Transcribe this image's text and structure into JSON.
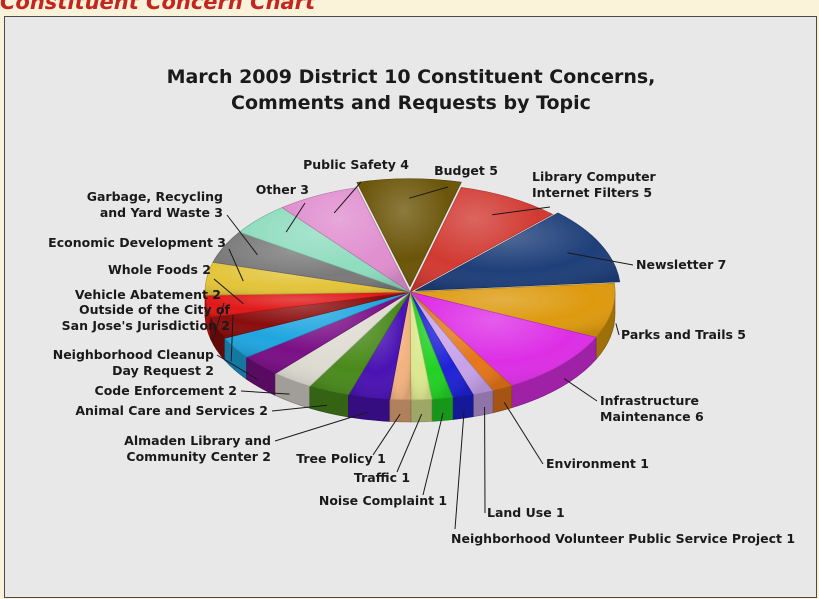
{
  "header": {
    "title": "Constituent Concern Chart"
  },
  "chart_data": {
    "type": "pie",
    "title_line1": "March 2009 District 10 Constituent Concerns,",
    "title_line2": "Comments and Requests by Topic",
    "slices": [
      {
        "name": "Budget",
        "value": 5,
        "color": "#6b5509",
        "lines": [
          "Budget 5"
        ]
      },
      {
        "name": "Library Computer Internet Filters",
        "value": 5,
        "color": "#d13a32",
        "lines": [
          "Library Computer",
          "Internet Filters 5"
        ]
      },
      {
        "name": "Newsletter",
        "value": 7,
        "color": "#1e3f7a",
        "lines": [
          "Newsletter 7"
        ]
      },
      {
        "name": "Parks and Trails",
        "value": 5,
        "color": "#dd9a0e",
        "lines": [
          "Parks and Trails 5"
        ]
      },
      {
        "name": "Infrastructure Maintenance",
        "value": 6,
        "color": "#dd2ee6",
        "lines": [
          "Infrastructure",
          "Maintenance 6"
        ]
      },
      {
        "name": "Environment",
        "value": 1,
        "color": "#e5751a",
        "lines": [
          "Environment 1"
        ]
      },
      {
        "name": "Land Use",
        "value": 1,
        "color": "#c6a1e8",
        "lines": [
          "Land Use 1"
        ]
      },
      {
        "name": "Neighborhood Volunteer Public Service Project",
        "value": 1,
        "color": "#1f22d6",
        "lines": [
          "Neighborhood Volunteer Public Service Project 1"
        ]
      },
      {
        "name": "Noise Complaint",
        "value": 1,
        "color": "#22d024",
        "lines": [
          "Noise Complaint 1"
        ]
      },
      {
        "name": "Traffic",
        "value": 1,
        "color": "#dbe88e",
        "lines": [
          "Traffic 1"
        ]
      },
      {
        "name": "Tree Policy",
        "value": 1,
        "color": "#f1b27e",
        "lines": [
          "Tree Policy 1"
        ]
      },
      {
        "name": "Almaden Library and Community Center",
        "value": 2,
        "color": "#4a12b3",
        "lines": [
          "Almaden Library and",
          "Community Center 2"
        ]
      },
      {
        "name": "Animal Care and Services",
        "value": 2,
        "color": "#4a8a1c",
        "lines": [
          "Animal Care and Services 2"
        ]
      },
      {
        "name": "Code Enforcement",
        "value": 2,
        "color": "#dedbd1",
        "lines": [
          "Code Enforcement 2"
        ]
      },
      {
        "name": "Neighborhood Cleanup Day Request",
        "value": 2,
        "color": "#7a0f86",
        "lines": [
          "Neighborhood Cleanup",
          "Day Request 2"
        ]
      },
      {
        "name": "Outside of the City of San Jose's Jurisdiction",
        "value": 2,
        "color": "#1fa6e0",
        "lines": [
          "Outside of the City of",
          "San Jose's Jurisdiction 2"
        ]
      },
      {
        "name": "Vehicle Abatement",
        "value": 2,
        "color": "#8a0d0d",
        "lines": [
          "Vehicle Abatement 2"
        ]
      },
      {
        "name": "Whole Foods",
        "value": 2,
        "color": "#e01818",
        "lines": [
          "Whole Foods 2"
        ]
      },
      {
        "name": "Economic Development",
        "value": 3,
        "color": "#e3c43a",
        "lines": [
          "Economic Development 3"
        ]
      },
      {
        "name": "Garbage, Recycling and Yard Waste",
        "value": 3,
        "color": "#7a7a7a",
        "lines": [
          "Garbage, Recycling",
          "and Yard Waste 3"
        ]
      },
      {
        "name": "Other",
        "value": 3,
        "color": "#8fdcbf",
        "lines": [
          "Other 3"
        ]
      },
      {
        "name": "Public Safety",
        "value": 4,
        "color": "#e08fcf",
        "lines": [
          "Public Safety 4"
        ]
      }
    ]
  }
}
